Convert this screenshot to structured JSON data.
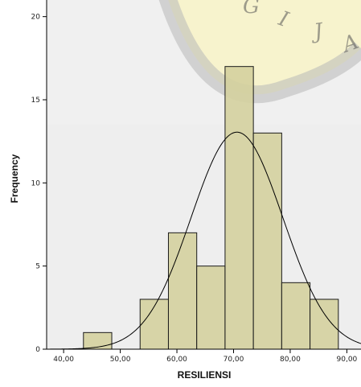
{
  "chart_data": {
    "type": "bar",
    "xlabel": "RESILIENSI",
    "ylabel": "Frequency",
    "x_ticks": [
      "40,00",
      "50,00",
      "60,00",
      "70,00",
      "80,00",
      "90,00"
    ],
    "y_ticks": [
      "0",
      "5",
      "10",
      "15",
      "20"
    ],
    "xlim": [
      37,
      92.5
    ],
    "ylim": [
      0,
      21
    ],
    "bin_width": 5,
    "bins": [
      {
        "start": 43.5,
        "end": 48.5,
        "count": 1
      },
      {
        "start": 53.5,
        "end": 58.5,
        "count": 3
      },
      {
        "start": 58.5,
        "end": 63.5,
        "count": 7
      },
      {
        "start": 63.5,
        "end": 68.5,
        "count": 5
      },
      {
        "start": 68.5,
        "end": 73.5,
        "count": 17
      },
      {
        "start": 73.5,
        "end": 78.5,
        "count": 13
      },
      {
        "start": 78.5,
        "end": 83.5,
        "count": 4
      },
      {
        "start": 83.5,
        "end": 88.5,
        "count": 3
      }
    ],
    "normal_curve": {
      "mean": 70.6,
      "sd": 8.1,
      "n": 53
    },
    "colors": {
      "bar_fill": "#d4d09e",
      "bar_stroke": "#1a1a1a",
      "background": "#f0f0f0",
      "curve": "#000000"
    }
  },
  "watermark": {
    "letters": [
      "G",
      "I",
      "J",
      "A"
    ]
  }
}
